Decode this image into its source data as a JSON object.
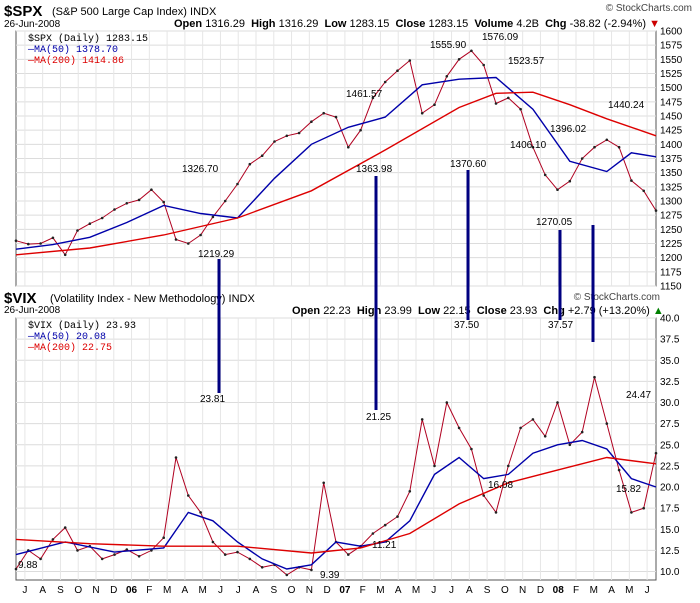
{
  "spx_header": {
    "symbol": "$SPX",
    "name": "(S&P 500 Large Cap Index)",
    "exchange": "INDX",
    "date": "26-Jun-2008",
    "open_label": "Open",
    "open": "1316.29",
    "high_label": "High",
    "high": "1316.29",
    "low_label": "Low",
    "low": "1283.15",
    "close_label": "Close",
    "close": "1283.15",
    "volume_label": "Volume",
    "volume": "4.2B",
    "chg_label": "Chg",
    "chg": "-38.82 (-2.94%)",
    "watermark": "© StockCharts.com"
  },
  "vix_header": {
    "symbol": "$VIX",
    "name": "(Volatility Index - New Methodology)",
    "exchange": "INDX",
    "date": "26-Jun-2008",
    "open_label": "Open",
    "open": "22.23",
    "high_label": "High",
    "high": "23.99",
    "low_label": "Low",
    "low": "22.15",
    "close_label": "Close",
    "close": "23.93",
    "chg_label": "Chg",
    "chg": "+2.79 (+13.20%)",
    "watermark": "© StockCharts.com"
  },
  "colors": {
    "price": "#000000",
    "down": "#b00020",
    "ma50": "#0000aa",
    "ma200": "#dd0000",
    "connector": "#000080",
    "chg_down": "#cc0000",
    "chg_up": "#008000"
  },
  "chart_data": [
    {
      "type": "line",
      "title": "$SPX (Daily)",
      "ylim": [
        1150,
        1600
      ],
      "y_ticks": [
        "1600",
        "1575",
        "1550",
        "1525",
        "1500",
        "1475",
        "1450",
        "1425",
        "1400",
        "1375",
        "1350",
        "1325",
        "1300",
        "1275",
        "1250",
        "1225",
        "1200",
        "1175",
        "1150"
      ],
      "x_months": [
        "J",
        "A",
        "S",
        "O",
        "N",
        "D",
        "06",
        "F",
        "M",
        "A",
        "M",
        "J",
        "J",
        "A",
        "S",
        "O",
        "N",
        "D",
        "07",
        "F",
        "M",
        "A",
        "M",
        "J",
        "J",
        "A",
        "S",
        "O",
        "N",
        "D",
        "08",
        "F",
        "M",
        "A",
        "M",
        "J"
      ],
      "series": [
        {
          "name": "$SPX (Daily) 1283.15",
          "role": "price",
          "points": [
            [
              0,
              1230
            ],
            [
              1,
              1224
            ],
            [
              2,
              1225
            ],
            [
              3,
              1235
            ],
            [
              4,
              1205
            ],
            [
              5,
              1248
            ],
            [
              6,
              1260
            ],
            [
              7,
              1270
            ],
            [
              8,
              1285
            ],
            [
              9,
              1296
            ],
            [
              10,
              1302
            ],
            [
              11,
              1320
            ],
            [
              12,
              1298
            ],
            [
              13,
              1232
            ],
            [
              14,
              1225
            ],
            [
              15,
              1240
            ],
            [
              16,
              1272
            ],
            [
              17,
              1300
            ],
            [
              18,
              1330
            ],
            [
              19,
              1365
            ],
            [
              20,
              1380
            ],
            [
              21,
              1405
            ],
            [
              22,
              1415
            ],
            [
              23,
              1420
            ],
            [
              24,
              1440
            ],
            [
              25,
              1455
            ],
            [
              26,
              1448
            ],
            [
              27,
              1395
            ],
            [
              28,
              1425
            ],
            [
              29,
              1482
            ],
            [
              30,
              1510
            ],
            [
              31,
              1530
            ],
            [
              32,
              1548
            ],
            [
              33,
              1455
            ],
            [
              34,
              1470
            ],
            [
              35,
              1520
            ],
            [
              36,
              1550
            ],
            [
              37,
              1565
            ],
            [
              38,
              1540
            ],
            [
              39,
              1472
            ],
            [
              40,
              1482
            ],
            [
              41,
              1462
            ],
            [
              42,
              1395
            ],
            [
              43,
              1346
            ],
            [
              44,
              1320
            ],
            [
              45,
              1335
            ],
            [
              46,
              1375
            ],
            [
              47,
              1395
            ],
            [
              48,
              1408
            ],
            [
              49,
              1395
            ],
            [
              50,
              1336
            ],
            [
              51,
              1318
            ],
            [
              52,
              1283
            ]
          ]
        },
        {
          "name": "MA(50) 1378.70",
          "role": "ma50",
          "points": [
            [
              0,
              1215
            ],
            [
              3,
              1223
            ],
            [
              6,
              1236
            ],
            [
              9,
              1262
            ],
            [
              12,
              1292
            ],
            [
              15,
              1278
            ],
            [
              18,
              1270
            ],
            [
              21,
              1340
            ],
            [
              24,
              1400
            ],
            [
              27,
              1430
            ],
            [
              30,
              1448
            ],
            [
              33,
              1505
            ],
            [
              36,
              1515
            ],
            [
              39,
              1518
            ],
            [
              42,
              1462
            ],
            [
              45,
              1370
            ],
            [
              48,
              1352
            ],
            [
              50,
              1385
            ],
            [
              52,
              1378
            ]
          ]
        },
        {
          "name": "MA(200) 1414.86",
          "role": "ma200",
          "points": [
            [
              0,
              1205
            ],
            [
              6,
              1217
            ],
            [
              12,
              1240
            ],
            [
              18,
              1270
            ],
            [
              24,
              1318
            ],
            [
              30,
              1390
            ],
            [
              36,
              1465
            ],
            [
              39,
              1490
            ],
            [
              42,
              1492
            ],
            [
              45,
              1470
            ],
            [
              48,
              1445
            ],
            [
              52,
              1415
            ]
          ]
        }
      ],
      "annotations": [
        "1326.70",
        "1219.29",
        "1461.57",
        "1363.98",
        "1555.90",
        "1370.60",
        "1576.09",
        "1523.57",
        "1406.10",
        "1396.02",
        "1270.05",
        "1440.24"
      ]
    },
    {
      "type": "line",
      "title": "$VIX (Daily)",
      "ylim": [
        9,
        40
      ],
      "y_ticks": [
        "40.0",
        "37.5",
        "35.0",
        "32.5",
        "30.0",
        "27.5",
        "25.0",
        "22.5",
        "20.0",
        "17.5",
        "15.0",
        "12.5",
        "10.0"
      ],
      "x_months": [
        "J",
        "A",
        "S",
        "O",
        "N",
        "D",
        "06",
        "F",
        "M",
        "A",
        "M",
        "J",
        "J",
        "A",
        "S",
        "O",
        "N",
        "D",
        "07",
        "F",
        "M",
        "A",
        "M",
        "J",
        "J",
        "A",
        "S",
        "O",
        "N",
        "D",
        "08",
        "F",
        "M",
        "A",
        "M",
        "J"
      ],
      "series": [
        {
          "name": "$VIX (Daily) 23.93",
          "role": "price",
          "points": [
            [
              0,
              10.3
            ],
            [
              1,
              12.5
            ],
            [
              2,
              11.5
            ],
            [
              3,
              13.8
            ],
            [
              4,
              15.2
            ],
            [
              5,
              12.5
            ],
            [
              6,
              13.0
            ],
            [
              7,
              11.5
            ],
            [
              8,
              12.0
            ],
            [
              9,
              12.6
            ],
            [
              10,
              11.8
            ],
            [
              11,
              12.5
            ],
            [
              12,
              14.0
            ],
            [
              13,
              23.5
            ],
            [
              14,
              19.0
            ],
            [
              15,
              17.0
            ],
            [
              16,
              13.5
            ],
            [
              17,
              12.0
            ],
            [
              18,
              12.3
            ],
            [
              19,
              11.5
            ],
            [
              20,
              10.5
            ],
            [
              21,
              10.8
            ],
            [
              22,
              9.6
            ],
            [
              23,
              10.5
            ],
            [
              24,
              10.2
            ],
            [
              25,
              20.5
            ],
            [
              26,
              13.5
            ],
            [
              27,
              12.0
            ],
            [
              28,
              13.0
            ],
            [
              29,
              14.5
            ],
            [
              30,
              15.5
            ],
            [
              31,
              16.5
            ],
            [
              32,
              19.5
            ],
            [
              33,
              28.0
            ],
            [
              34,
              22.5
            ],
            [
              35,
              30.0
            ],
            [
              36,
              27.0
            ],
            [
              37,
              24.5
            ],
            [
              38,
              19.0
            ],
            [
              39,
              17.0
            ],
            [
              40,
              22.5
            ],
            [
              41,
              27.0
            ],
            [
              42,
              28.0
            ],
            [
              43,
              26.0
            ],
            [
              44,
              30.0
            ],
            [
              45,
              25.0
            ],
            [
              46,
              26.5
            ],
            [
              47,
              33.0
            ],
            [
              48,
              27.5
            ],
            [
              49,
              22.0
            ],
            [
              50,
              17.0
            ],
            [
              51,
              17.5
            ],
            [
              52,
              24.0
            ]
          ]
        },
        {
          "name": "MA(50) 20.08",
          "role": "ma50",
          "points": [
            [
              0,
              12.0
            ],
            [
              4,
              13.5
            ],
            [
              8,
              12.3
            ],
            [
              12,
              12.8
            ],
            [
              14,
              17.0
            ],
            [
              16,
              16.0
            ],
            [
              18,
              13.5
            ],
            [
              20,
              11.5
            ],
            [
              22,
              10.3
            ],
            [
              24,
              10.8
            ],
            [
              26,
              13.5
            ],
            [
              28,
              13.0
            ],
            [
              30,
              13.5
            ],
            [
              32,
              16.0
            ],
            [
              34,
              21.5
            ],
            [
              36,
              23.5
            ],
            [
              38,
              21.0
            ],
            [
              40,
              21.5
            ],
            [
              42,
              24.0
            ],
            [
              44,
              25.0
            ],
            [
              46,
              25.5
            ],
            [
              48,
              24.5
            ],
            [
              50,
              21.0
            ],
            [
              52,
              20.0
            ]
          ]
        },
        {
          "name": "MA(200) 22.75",
          "role": "ma200",
          "points": [
            [
              0,
              13.8
            ],
            [
              6,
              13.3
            ],
            [
              12,
              13.0
            ],
            [
              18,
              13.0
            ],
            [
              24,
              12.2
            ],
            [
              28,
              12.8
            ],
            [
              32,
              14.5
            ],
            [
              36,
              18.0
            ],
            [
              40,
              20.5
            ],
            [
              44,
              22.0
            ],
            [
              48,
              23.5
            ],
            [
              52,
              22.75
            ]
          ]
        }
      ],
      "annotations": [
        "9.88",
        "23.81",
        "9.39",
        "21.25",
        "11.21",
        "37.50",
        "16.08",
        "37.57",
        "15.82",
        "24.47"
      ]
    }
  ]
}
